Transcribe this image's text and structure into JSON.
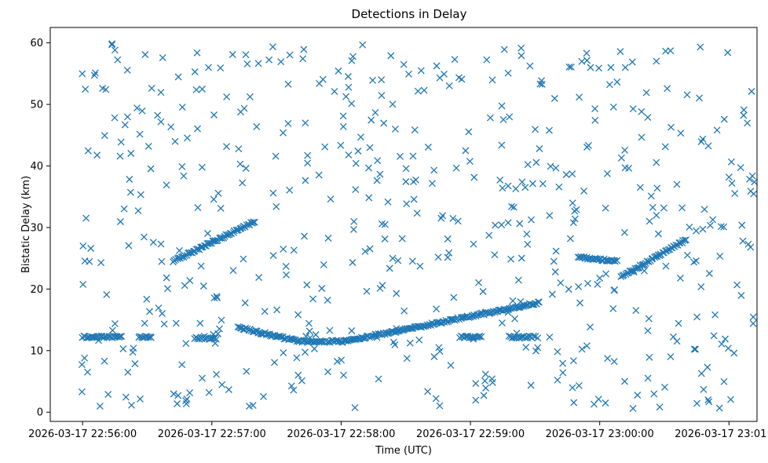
{
  "chart_data": {
    "type": "scatter",
    "title": "Detections in Delay",
    "xlabel": "Time (UTC)",
    "ylabel": "Bistatic Delay (km)",
    "x_unit": "seconds",
    "x_ticks": [
      "2026-03-17 22:56:00",
      "2026-03-17 22:57:00",
      "2026-03-17 22:58:00",
      "2026-03-17 22:59:00",
      "2026-03-17 23:00:00",
      "2026-03-17 23:01:00"
    ],
    "xlim": [
      "2026-03-17 22:55:45",
      "2026-03-17 23:01:13"
    ],
    "y_ticks": [
      0,
      10,
      20,
      30,
      40,
      50,
      60
    ],
    "ylim": [
      -1.5,
      62.5
    ],
    "grid": false,
    "marker": "x",
    "color": "#1f77b4",
    "tracks": [
      {
        "description": "flat track",
        "start": "2026-03-17 22:56:00",
        "end": "2026-03-17 22:56:18",
        "delay_start": 12.2,
        "delay_end": 12.2
      },
      {
        "description": "flat track",
        "start": "2026-03-17 22:56:26",
        "end": "2026-03-17 22:56:32",
        "delay_start": 12.2,
        "delay_end": 12.2
      },
      {
        "description": "flat track",
        "start": "2026-03-17 22:56:52",
        "end": "2026-03-17 22:57:02",
        "delay_start": 12.0,
        "delay_end": 12.0
      },
      {
        "description": "descending track",
        "start": "2026-03-17 22:57:12",
        "end": "2026-03-17 22:57:40",
        "delay_start": 13.8,
        "delay_end": 11.5
      },
      {
        "description": "ascending track",
        "start": "2026-03-17 22:58:02",
        "end": "2026-03-17 22:59:32",
        "delay_start": 11.5,
        "delay_end": 17.8
      },
      {
        "description": "flat track",
        "start": "2026-03-17 22:58:55",
        "end": "2026-03-17 22:59:05",
        "delay_start": 12.2,
        "delay_end": 12.2
      },
      {
        "description": "flat track",
        "start": "2026-03-17 22:59:18",
        "end": "2026-03-17 22:59:30",
        "delay_start": 12.2,
        "delay_end": 12.2
      },
      {
        "description": "flat track",
        "start": "2026-03-17 22:57:40",
        "end": "2026-03-17 22:58:02",
        "delay_start": 11.5,
        "delay_end": 11.5
      },
      {
        "description": "mid track",
        "start": "2026-03-17 22:56:42",
        "end": "2026-03-17 22:57:20",
        "delay_start": 24.5,
        "delay_end": 31.0
      },
      {
        "description": "mid track",
        "start": "2026-03-17 22:59:50",
        "end": "2026-03-17 23:00:08",
        "delay_start": 25.2,
        "delay_end": 24.5
      },
      {
        "description": "mid track",
        "start": "2026-03-17 23:00:10",
        "end": "2026-03-17 23:00:40",
        "delay_start": 22.0,
        "delay_end": 28.0
      }
    ],
    "scatter_density": {
      "x_range": [
        "2026-03-17 22:55:59",
        "2026-03-17 23:01:12"
      ],
      "y_range": [
        0.5,
        60
      ],
      "count": 560
    }
  }
}
